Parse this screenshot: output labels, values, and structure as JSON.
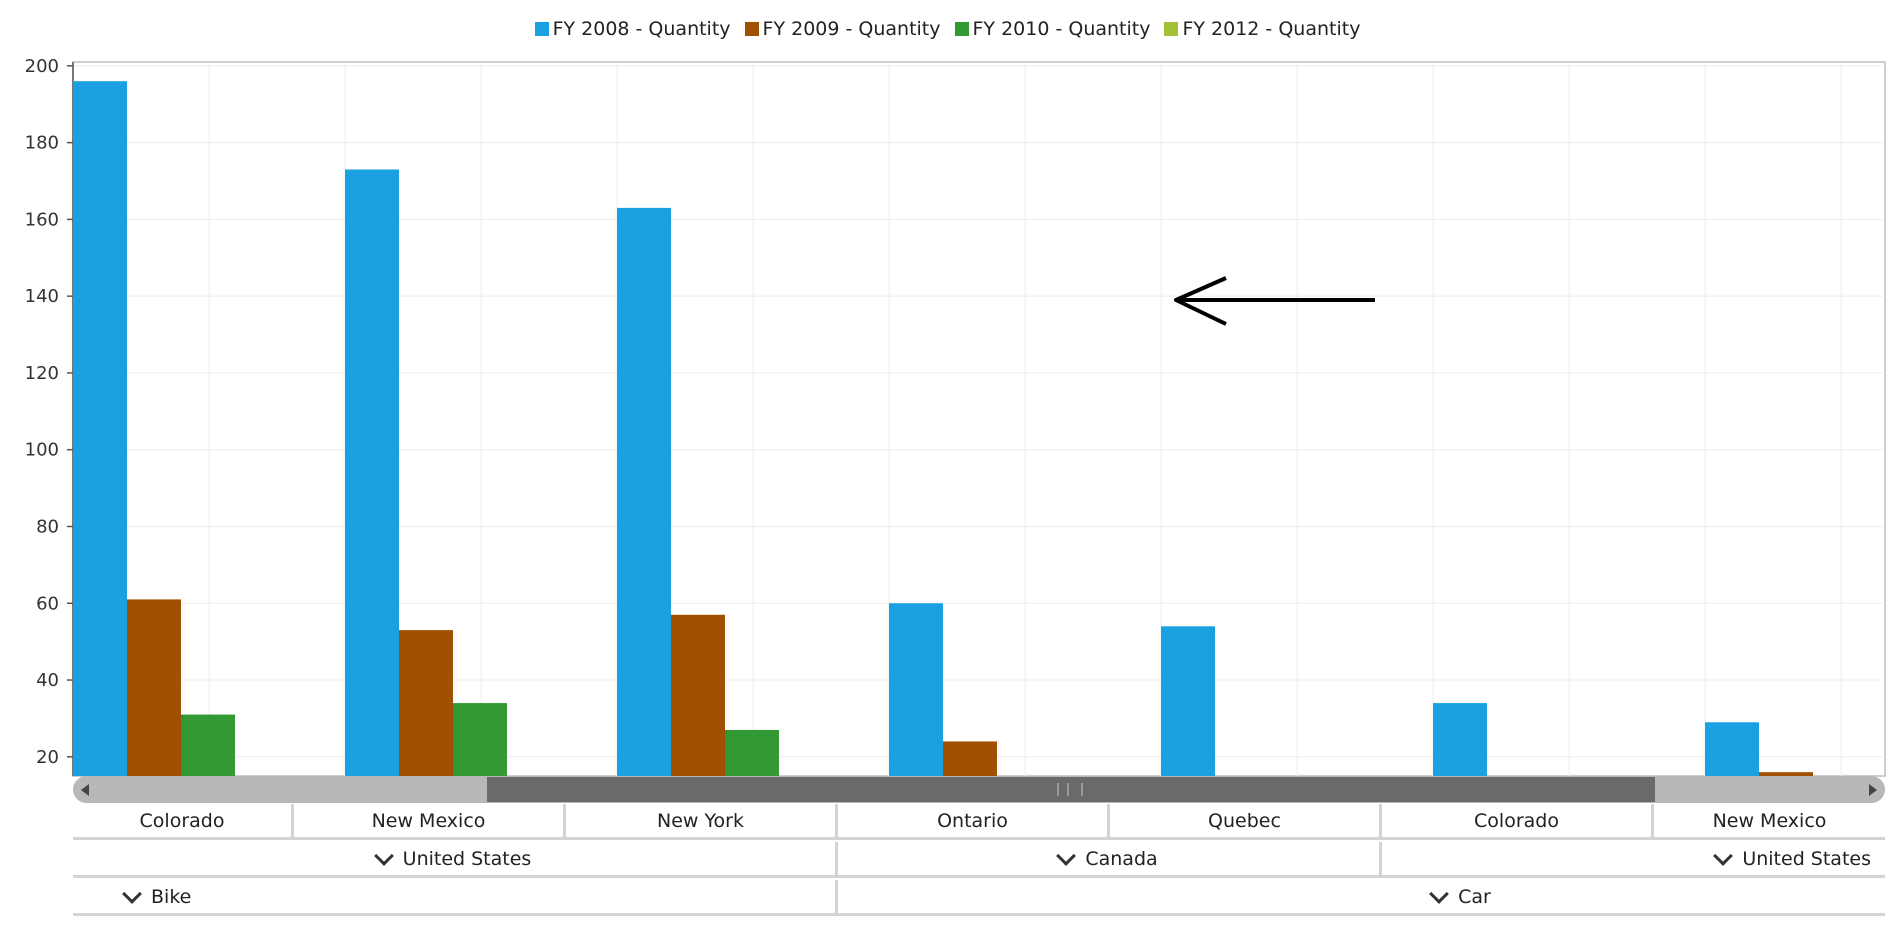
{
  "legend": [
    {
      "label": "FY 2008 - Quantity",
      "color": "#1ba1e2"
    },
    {
      "label": "FY 2009 - Quantity",
      "color": "#a05000"
    },
    {
      "label": "FY 2010 - Quantity",
      "color": "#339933"
    },
    {
      "label": "FY 2012 - Quantity",
      "color": "#a2c139"
    }
  ],
  "chart_data": {
    "type": "bar",
    "categories": [
      "Colorado",
      "New Mexico",
      "New York",
      "Ontario",
      "Quebec",
      "Colorado",
      "New Mexico"
    ],
    "series": [
      {
        "name": "FY 2008 - Quantity",
        "values": [
          196,
          173,
          163,
          60,
          54,
          34,
          29
        ]
      },
      {
        "name": "FY 2009 - Quantity",
        "values": [
          61,
          53,
          57,
          24,
          null,
          null,
          16
        ]
      },
      {
        "name": "FY 2010 - Quantity",
        "values": [
          31,
          34,
          27,
          null,
          null,
          null,
          null
        ]
      },
      {
        "name": "FY 2012 - Quantity",
        "values": [
          null,
          null,
          null,
          null,
          null,
          null,
          null
        ]
      }
    ],
    "yticks": [
      20,
      40,
      60,
      80,
      100,
      120,
      140,
      160,
      180,
      200
    ],
    "ylim": [
      15,
      201
    ],
    "grid": true,
    "legend_position": "top-center"
  },
  "axis_levels": {
    "states": [
      "Colorado",
      "New Mexico",
      "New York",
      "Ontario",
      "Quebec",
      "Colorado",
      "New Mexico"
    ],
    "countries": [
      "United States",
      "Canada",
      "United States"
    ],
    "products": [
      "Bike",
      "Car"
    ]
  }
}
